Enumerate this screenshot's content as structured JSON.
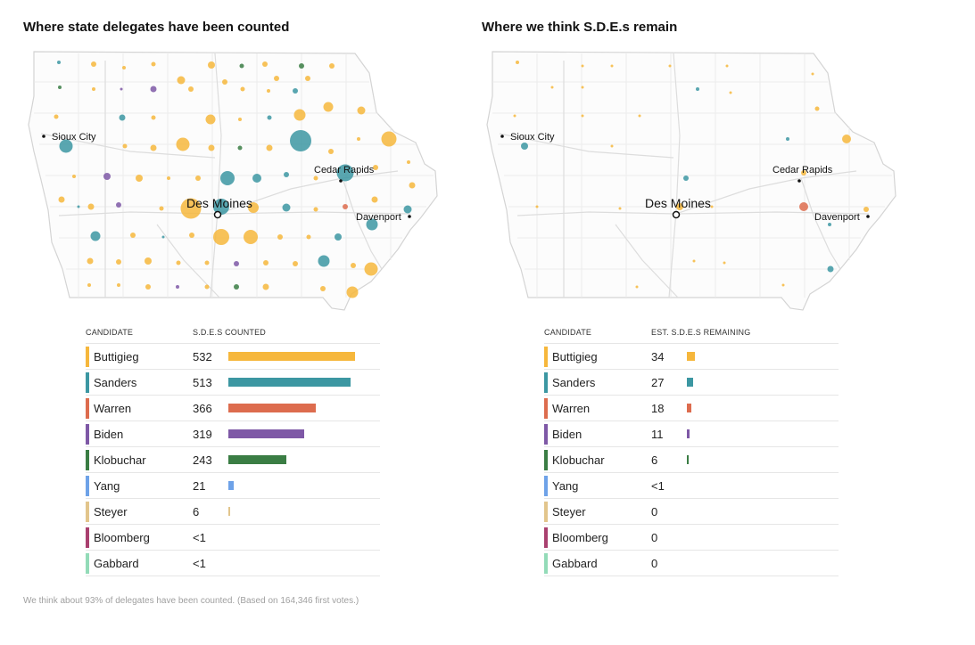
{
  "colors": {
    "Buttigieg": "#f6b73c",
    "Sanders": "#3c97a2",
    "Warren": "#dd6c4e",
    "Biden": "#7e58a6",
    "Klobuchar": "#3a7d44",
    "Yang": "#6ea2e8",
    "Steyer": "#e2c58c",
    "Bloomberg": "#a9406f",
    "Gabbard": "#93dbb8"
  },
  "left": {
    "title": "Where state delegates have been counted",
    "cities": {
      "sioux_city": "Sioux City",
      "cedar_rapids": "Cedar Rapids",
      "des_moines": "Des Moines",
      "davenport": "Davenport"
    },
    "table": {
      "col_candidate": "CANDIDATE",
      "col_value": "S.D.E.S COUNTED",
      "max_value": 532,
      "rows": [
        {
          "name": "Buttigieg",
          "value": "532",
          "bar": 532
        },
        {
          "name": "Sanders",
          "value": "513",
          "bar": 513
        },
        {
          "name": "Warren",
          "value": "366",
          "bar": 366
        },
        {
          "name": "Biden",
          "value": "319",
          "bar": 319
        },
        {
          "name": "Klobuchar",
          "value": "243",
          "bar": 243
        },
        {
          "name": "Yang",
          "value": "21",
          "bar": 21
        },
        {
          "name": "Steyer",
          "value": "6",
          "bar": 6
        },
        {
          "name": "Bloomberg",
          "value": "<1",
          "bar": 0
        },
        {
          "name": "Gabbard",
          "value": "<1",
          "bar": 0
        }
      ]
    }
  },
  "right": {
    "title": "Where we think S.D.E.s remain",
    "cities": {
      "sioux_city": "Sioux City",
      "cedar_rapids": "Cedar Rapids",
      "des_moines": "Des Moines",
      "davenport": "Davenport"
    },
    "table": {
      "col_candidate": "CANDIDATE",
      "col_value": "EST. S.D.E.S REMAINING",
      "max_value": 532,
      "rows": [
        {
          "name": "Buttigieg",
          "value": "34",
          "bar": 34
        },
        {
          "name": "Sanders",
          "value": "27",
          "bar": 27
        },
        {
          "name": "Warren",
          "value": "18",
          "bar": 18
        },
        {
          "name": "Biden",
          "value": "11",
          "bar": 11
        },
        {
          "name": "Klobuchar",
          "value": "6",
          "bar": 6
        },
        {
          "name": "Yang",
          "value": "<1",
          "bar": 0
        },
        {
          "name": "Steyer",
          "value": "0",
          "bar": 0
        },
        {
          "name": "Bloomberg",
          "value": "0",
          "bar": 0
        },
        {
          "name": "Gabbard",
          "value": "0",
          "bar": 0
        }
      ]
    }
  },
  "footnote": "We think about 93% of delegates have been counted. (Based on 164,346 first votes.)"
}
